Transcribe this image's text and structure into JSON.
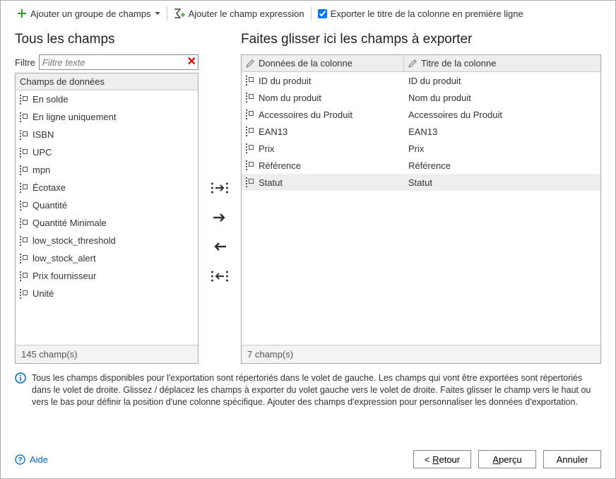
{
  "colors": {
    "accent_green": "#2e9e2e",
    "accent_blue": "#0066cc",
    "danger": "#d00000",
    "border": "#aaaaaa",
    "header_bg": "#eeeeee"
  },
  "toolbar": {
    "add_group": "Ajouter un groupe de champs",
    "add_expression": "Ajouter le champ expression",
    "export_title_checkbox": "Exporter le titre de la colonne en première ligne",
    "export_title_checked": true
  },
  "left": {
    "title": "Tous les champs",
    "filter_label": "Filtre",
    "filter_placeholder": "Filtre texte",
    "group_header": "Champs de données",
    "items": [
      "En solde",
      "En ligne uniquement",
      "ISBN",
      "UPC",
      "mpn",
      "Écotaxe",
      "Quantité",
      "Quantité Minimale",
      "low_stock_threshold",
      "low_stock_alert",
      "Prix fournisseur",
      "Unité"
    ],
    "footer": "145 champ(s)"
  },
  "right": {
    "title": "Faites glisser ici les champs à exporter",
    "col_data": "Données de la colonne",
    "col_title": "Titre de la colonne",
    "rows": [
      {
        "data": "ID du produit",
        "title": "ID du produit"
      },
      {
        "data": "Nom du produit",
        "title": "Nom du produit"
      },
      {
        "data": "Accessoires du Produit",
        "title": "Accessoires du Produit"
      },
      {
        "data": "EAN13",
        "title": "EAN13"
      },
      {
        "data": "Prix",
        "title": "Prix"
      },
      {
        "data": "Référence",
        "title": "Référence"
      },
      {
        "data": "Statut",
        "title": "Statut"
      }
    ],
    "selected_index": 6,
    "footer": "7 champ(s)"
  },
  "info": {
    "text": "Tous les champs disponibles pour l'exportation sont répertoriés dans le volet de gauche. Les champs qui vont être exportées sont répertoriés dans le volet de droite. Glissez / déplacez les champs à exporter du volet gauche vers le volet de droite. Faites glisser le champ vers le haut ou vers le bas pour définir la position d'une colonne spécifique. Ajouter des champs d'expression pour personnaliser les données d'exportation."
  },
  "bottom": {
    "help": "Aide",
    "back": "Retour",
    "preview": "Aperçu",
    "cancel": "Annuler"
  }
}
